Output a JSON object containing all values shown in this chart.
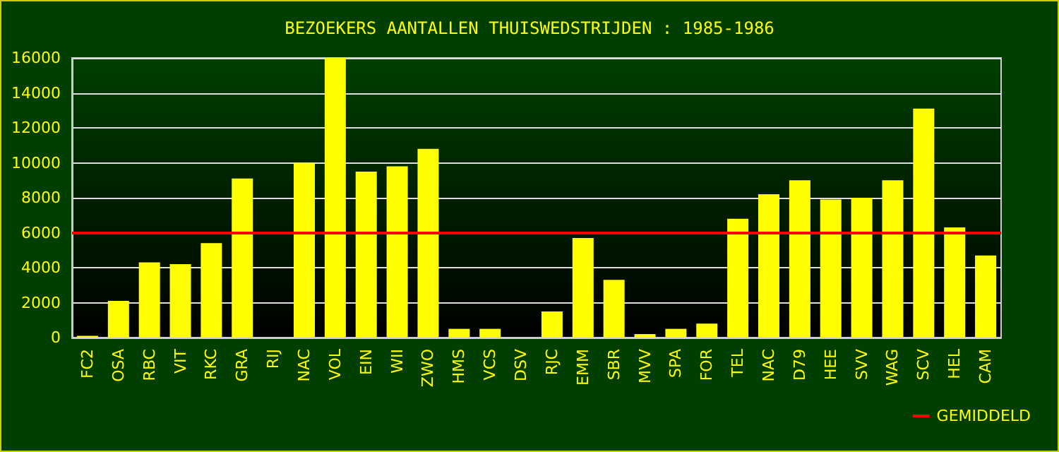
{
  "chart_data": {
    "type": "bar",
    "title": "BEZOEKERS AANTALLEN THUISWEDSTRIJDEN : 1985-1986",
    "categories": [
      "FC2",
      "OSA",
      "RBC",
      "VIT",
      "RKC",
      "GRA",
      "RIJ",
      "NAC",
      "VOL",
      "EIN",
      "WII",
      "ZWO",
      "HMS",
      "VCS",
      "DSV",
      "RJC",
      "EMM",
      "SBR",
      "MVV",
      "SPA",
      "FOR",
      "TEL",
      "NAC",
      "D79",
      "HEE",
      "SVV",
      "WAG",
      "SCV",
      "HEL",
      "CAM"
    ],
    "values": [
      100,
      2100,
      4300,
      4200,
      5400,
      9100,
      null,
      10000,
      16000,
      9500,
      9800,
      10800,
      500,
      500,
      null,
      1500,
      5700,
      3300,
      200,
      500,
      800,
      6800,
      8200,
      9000,
      7900,
      8000,
      9000,
      13100,
      6300,
      4700
    ],
    "color": "#ffff00",
    "ylim": [
      0,
      16000
    ],
    "yticks": [
      0,
      2000,
      4000,
      6000,
      8000,
      10000,
      12000,
      14000,
      16000
    ],
    "grid": "y",
    "ref_lines": [
      {
        "axis": "y",
        "value": 6000,
        "label": "GEMIDDELD",
        "color": "#ff0000"
      }
    ],
    "legend": "bottom right"
  }
}
